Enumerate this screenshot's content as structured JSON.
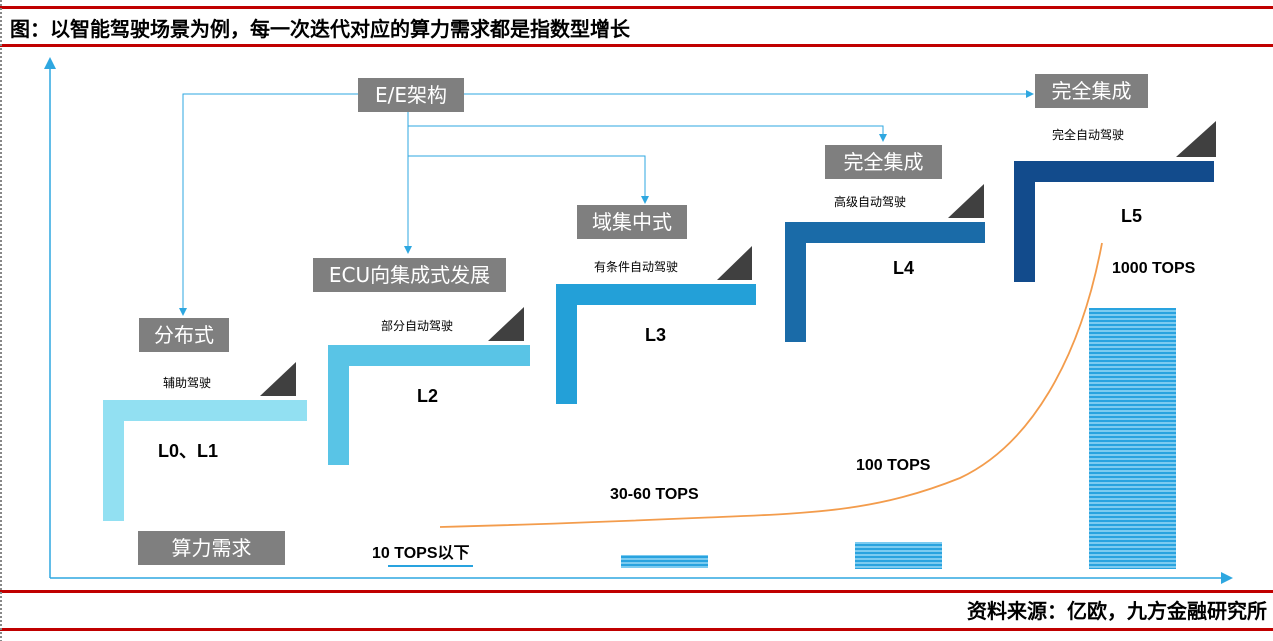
{
  "title": "图：以智能驾驶场景为例，每一次迭代对应的算力需求都是指数型增长",
  "source": "资料来源：亿欧，九方金融研究所",
  "architecture": {
    "root": "E/E架构",
    "stages": [
      "分布式",
      "ECU向集成式发展",
      "域集中式",
      "完全集成",
      "完全集成"
    ]
  },
  "levels": [
    {
      "name": "L0、L1",
      "desc": "辅助驾驶",
      "color": "#92e0f2"
    },
    {
      "name": "L2",
      "desc": "部分自动驾驶",
      "color": "#59c4e6"
    },
    {
      "name": "L3",
      "desc": "有条件自动驾驶",
      "color": "#23a0d8"
    },
    {
      "name": "L4",
      "desc": "高级自动驾驶",
      "color": "#1a6ba8"
    },
    {
      "name": "L5",
      "desc": "完全自动驾驶",
      "color": "#124b8c"
    }
  ],
  "compute": {
    "label": "算力需求",
    "values": [
      "10 TOPS以下",
      "30-60 TOPS",
      "100 TOPS",
      "1000 TOPS"
    ],
    "curve_color": "#f39c4c",
    "bar_color": "#29a3df"
  },
  "colors": {
    "rule": "#c00000",
    "box": "#7f7f7f",
    "connector": "#2ea7e0",
    "axis": "#2ea7e0"
  }
}
